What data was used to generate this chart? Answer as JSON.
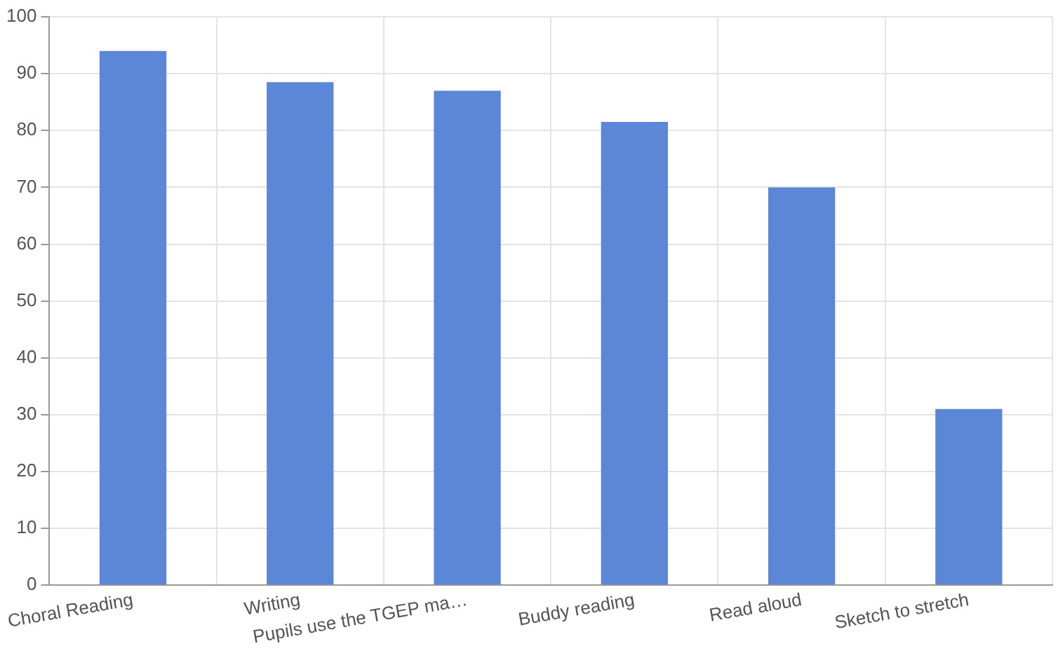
{
  "chart_data": {
    "type": "bar",
    "categories": [
      "Choral Reading",
      "Writing",
      "Pupils use the TGEP ma…",
      "Buddy reading",
      "Read aloud",
      "Sketch to stretch"
    ],
    "values": [
      94,
      88.5,
      87,
      81.5,
      70,
      31
    ],
    "color": "#5b87d6",
    "ylim": [
      0,
      100
    ],
    "yticks": [
      0,
      10,
      20,
      30,
      40,
      50,
      60,
      70,
      80,
      90,
      100
    ],
    "grid": true,
    "legend": false
  }
}
